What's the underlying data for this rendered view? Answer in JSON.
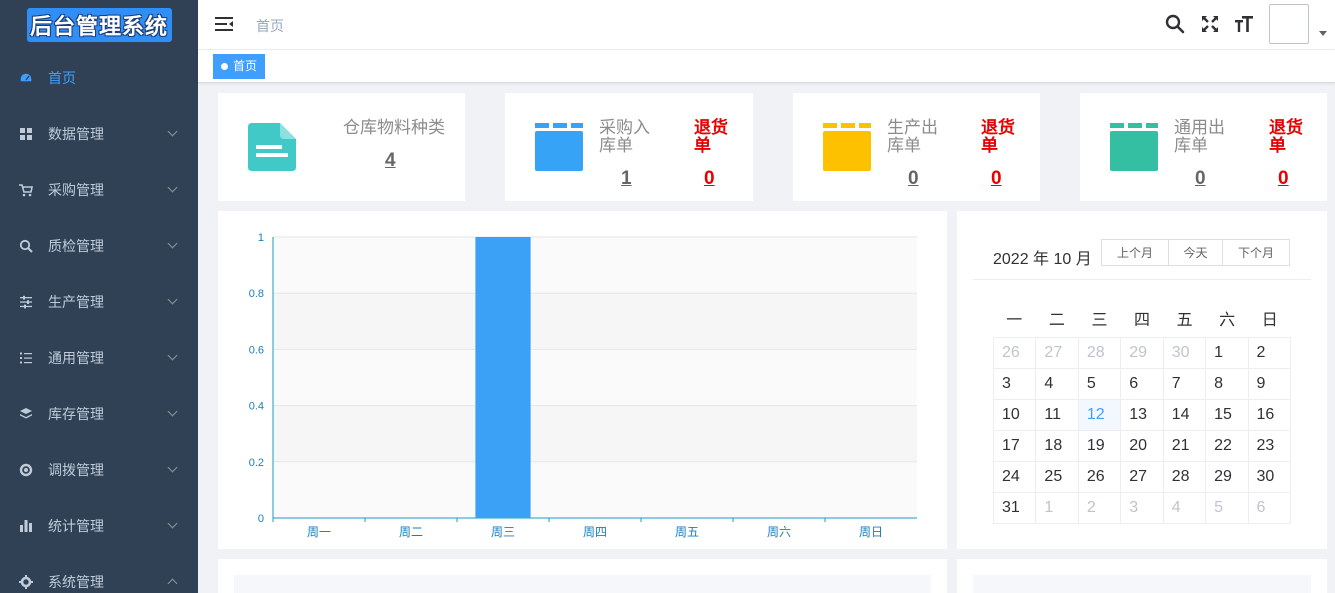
{
  "app": {
    "logo_text": "后台管理系统"
  },
  "sidebar": {
    "items": [
      {
        "label": "首页",
        "icon": "dashboard-icon",
        "active": true
      },
      {
        "label": "数据管理",
        "icon": "grid-icon"
      },
      {
        "label": "采购管理",
        "icon": "cart-icon"
      },
      {
        "label": "质检管理",
        "icon": "search-icon"
      },
      {
        "label": "生产管理",
        "icon": "sliders-icon"
      },
      {
        "label": "通用管理",
        "icon": "list-icon"
      },
      {
        "label": "库存管理",
        "icon": "layers-icon"
      },
      {
        "label": "调拨管理",
        "icon": "lifebuoy-icon"
      },
      {
        "label": "统计管理",
        "icon": "bar-chart-icon"
      },
      {
        "label": "系统管理",
        "icon": "gear-icon"
      }
    ]
  },
  "header": {
    "breadcrumb": "首页",
    "icons": [
      "search-icon",
      "fullscreen-icon",
      "font-size-icon"
    ]
  },
  "tags": {
    "active_tag": "首页"
  },
  "cards": {
    "c1": {
      "title": "仓库物料种类",
      "value": "4"
    },
    "c2": {
      "title_line1": "采购入",
      "title_line2": "库单",
      "value": "1",
      "red_line1": "退货",
      "red_line2": "单",
      "red_value": "0"
    },
    "c3": {
      "title_line1": "生产出",
      "title_line2": "库单",
      "value": "0",
      "red_line1": "退货",
      "red_line2": "单",
      "red_value": "0"
    },
    "c4": {
      "title_line1": "通用出",
      "title_line2": "库单",
      "value": "0",
      "red_line1": "退货",
      "red_line2": "单",
      "red_value": "0"
    }
  },
  "chart_data": {
    "type": "bar",
    "categories": [
      "周一",
      "周二",
      "周三",
      "周四",
      "周五",
      "周六",
      "周日"
    ],
    "values": [
      0,
      0,
      1,
      0,
      0,
      0,
      0
    ],
    "yticks": [
      "0",
      "0.2",
      "0.4",
      "0.6",
      "0.8",
      "1"
    ],
    "ylim": [
      0,
      1
    ],
    "color": "#3aa1f7"
  },
  "calendar": {
    "title": "2022 年 10 月",
    "buttons": [
      "上个月",
      "今天",
      "下个月"
    ],
    "weekdays": [
      "一",
      "二",
      "三",
      "四",
      "五",
      "六",
      "日"
    ],
    "weeks": [
      [
        "26",
        "27",
        "28",
        "29",
        "30",
        "1",
        "2"
      ],
      [
        "3",
        "4",
        "5",
        "6",
        "7",
        "8",
        "9"
      ],
      [
        "10",
        "11",
        "12",
        "13",
        "14",
        "15",
        "16"
      ],
      [
        "17",
        "18",
        "19",
        "20",
        "21",
        "22",
        "23"
      ],
      [
        "24",
        "25",
        "26",
        "27",
        "28",
        "29",
        "30"
      ],
      [
        "31",
        "1",
        "2",
        "3",
        "4",
        "5",
        "6"
      ]
    ],
    "today": "12"
  },
  "colors": {
    "sidebar_bg": "#304156",
    "accent": "#409eff",
    "card_teal": "#40c9c6",
    "card_blue": "#36a3f7",
    "card_yellow": "#fec100",
    "card_green": "#34bfa3",
    "red": "#e60000"
  }
}
